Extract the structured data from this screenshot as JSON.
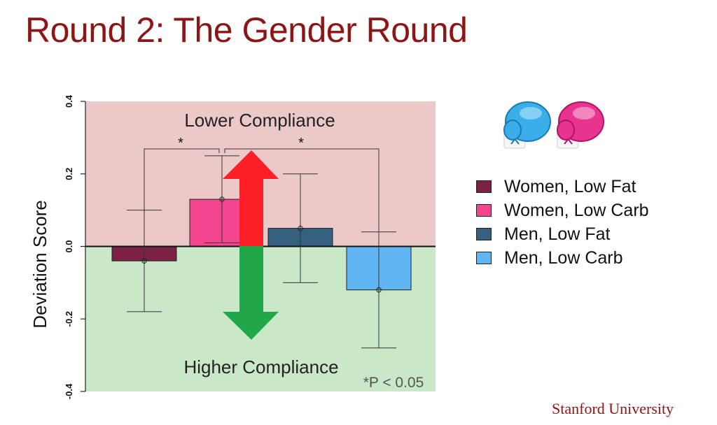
{
  "slide": {
    "title": "Round 2: The Gender Round",
    "brand": "Stanford University"
  },
  "chart_data": {
    "type": "bar",
    "ylabel": "Deviation Score",
    "ylim": [
      -0.4,
      0.4
    ],
    "yticks": [
      -0.4,
      -0.2,
      0.0,
      0.2,
      0.4
    ],
    "ytick_labels": [
      "-0.4",
      "-0.2",
      "0.0",
      "0.2",
      "0.4"
    ],
    "categories": [
      "Women, Low Fat",
      "Women, Low Carb",
      "Men, Low Fat",
      "Men, Low Carb"
    ],
    "series": [
      {
        "values": [
          -0.04,
          0.13,
          0.05,
          -0.12
        ]
      }
    ],
    "error_bars": [
      {
        "low": -0.18,
        "high": 0.1
      },
      {
        "low": 0.01,
        "high": 0.25
      },
      {
        "low": -0.1,
        "high": 0.2
      },
      {
        "low": -0.28,
        "high": 0.04
      }
    ],
    "bar_colors": [
      "#7b2146",
      "#f4468f",
      "#36607f",
      "#5fb6f2"
    ],
    "region_colors": {
      "upper": "#ebc9c9",
      "lower": "#c9e8c8"
    },
    "arrow_colors": {
      "up": "#ff1f26",
      "down": "#22a64a"
    },
    "annotations": {
      "upper_region": "Lower Compliance",
      "lower_region": "Higher Compliance",
      "significance_mark": "*",
      "significance_note": "*P < 0.05"
    },
    "significance_pairs": [
      [
        0,
        1
      ],
      [
        1,
        3
      ]
    ],
    "legend": {
      "position": "right",
      "entries": [
        "Women, Low Fat",
        "Women, Low Carb",
        "Men, Low Fat",
        "Men, Low Carb"
      ]
    }
  },
  "icons": [
    "boxing-glove-blue-icon",
    "boxing-glove-pink-icon"
  ]
}
